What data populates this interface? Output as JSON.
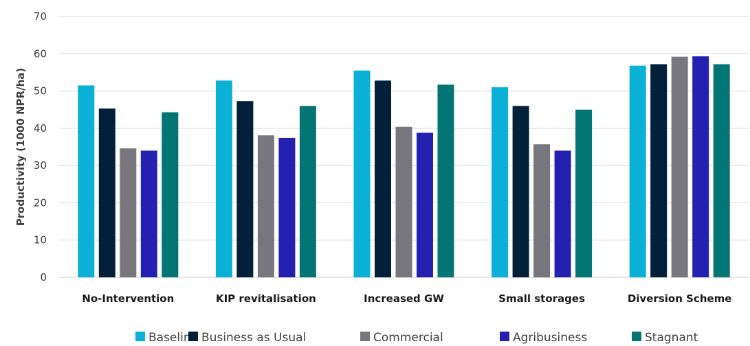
{
  "chart_data": {
    "type": "bar",
    "ylabel": "Productivity (1000 NPR/ha)",
    "xlabel": "",
    "ylim": [
      0,
      70
    ],
    "yticks": [
      0,
      10,
      20,
      30,
      40,
      50,
      60,
      70
    ],
    "grid": true,
    "legend_position": "bottom",
    "categories": [
      "No-Intervention",
      "KIP revitalisation",
      "Increased GW",
      "Small storages",
      "Diversion Scheme"
    ],
    "series": [
      {
        "name": "Baseline",
        "color": "#0bb0d6",
        "values": [
          51.5,
          52.8,
          55.5,
          51.0,
          56.8
        ]
      },
      {
        "name": "Business as Usual",
        "color": "#03203a",
        "values": [
          45.3,
          47.3,
          52.8,
          46.0,
          57.2
        ]
      },
      {
        "name": "Commercial",
        "color": "#77777d",
        "values": [
          34.6,
          38.1,
          40.4,
          35.7,
          59.2
        ]
      },
      {
        "name": "Agribusiness",
        "color": "#2421b0",
        "values": [
          34.0,
          37.4,
          38.8,
          34.0,
          59.3
        ]
      },
      {
        "name": "Stagnant",
        "color": "#047575",
        "values": [
          44.3,
          46.0,
          51.7,
          45.0,
          57.2
        ]
      }
    ]
  }
}
